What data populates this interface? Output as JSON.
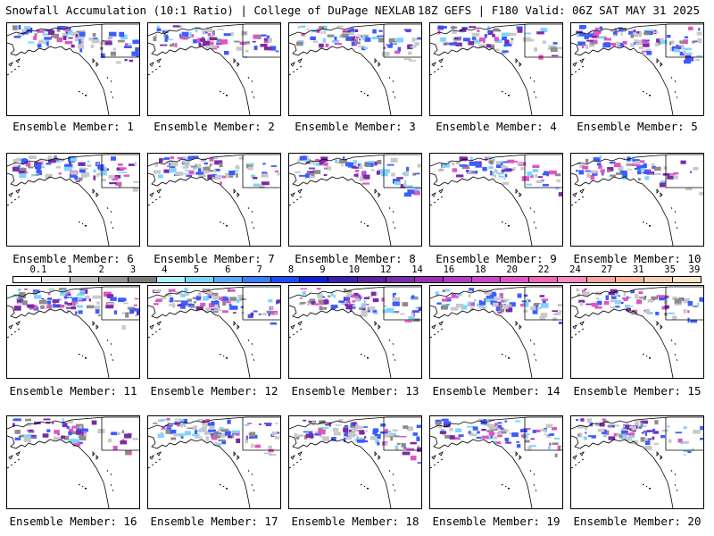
{
  "header": {
    "left": "Snowfall Accumulation (10:1 Ratio) | College of DuPage NEXLAB",
    "right": "18Z GEFS | F180 Valid: 06Z SAT MAY 31 2025"
  },
  "panels": [
    {
      "label": "Ensemble Member: 1"
    },
    {
      "label": "Ensemble Member: 2"
    },
    {
      "label": "Ensemble Member: 3"
    },
    {
      "label": "Ensemble Member: 4"
    },
    {
      "label": "Ensemble Member: 5"
    },
    {
      "label": "Ensemble Member: 6"
    },
    {
      "label": "Ensemble Member: 7"
    },
    {
      "label": "Ensemble Member: 8"
    },
    {
      "label": "Ensemble Member: 9"
    },
    {
      "label": "Ensemble Member: 10"
    },
    {
      "label": "Ensemble Member: 11"
    },
    {
      "label": "Ensemble Member: 12"
    },
    {
      "label": "Ensemble Member: 13"
    },
    {
      "label": "Ensemble Member: 14"
    },
    {
      "label": "Ensemble Member: 15"
    },
    {
      "label": "Ensemble Member: 16"
    },
    {
      "label": "Ensemble Member: 17"
    },
    {
      "label": "Ensemble Member: 18"
    },
    {
      "label": "Ensemble Member: 19"
    },
    {
      "label": "Ensemble Member: 20"
    }
  ],
  "colorbar": {
    "labels": [
      "0.1",
      "1",
      "2",
      "3",
      "4",
      "5",
      "6",
      "7",
      "8",
      "9",
      "10",
      "12",
      "14",
      "16",
      "18",
      "20",
      "22",
      "24",
      "27",
      "31",
      "35",
      "39"
    ],
    "colors": [
      "#ffffff",
      "#e6e6e6",
      "#bdbdbd",
      "#969696",
      "#7a7a7a",
      "#b3f0ff",
      "#7fd4ff",
      "#5aa9ff",
      "#3b7dff",
      "#1f4bff",
      "#0b1fd9",
      "#3a1fb0",
      "#5c1f9e",
      "#7b2aa8",
      "#9733b3",
      "#b33dbf",
      "#cc47c7",
      "#e055c2",
      "#ee66b8",
      "#f58cc2",
      "#f7a6a6",
      "#f5b89a",
      "#f7cfae",
      "#fbe6c8"
    ]
  },
  "map_colors": {
    "coast": "#000000",
    "light_snow": "#c8c8c8",
    "mid_snow": "#8c8c8c",
    "blue_snow": "#3b5cff",
    "cyan_snow": "#7fd4ff",
    "purple_snow": "#7b2aa8",
    "magenta_snow": "#e055c2"
  }
}
